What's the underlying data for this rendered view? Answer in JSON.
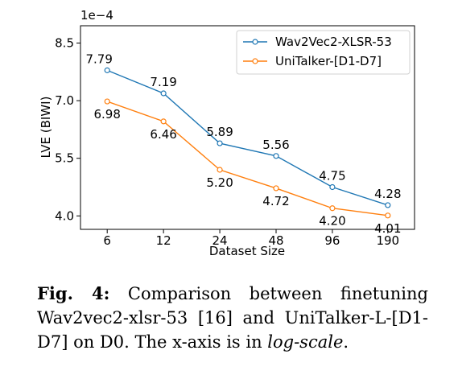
{
  "chart_data": {
    "type": "line",
    "title": "",
    "xlabel": "Dataset Size",
    "ylabel": "LVE (BIWI)",
    "y_multiplier": "1e−4",
    "x": [
      6,
      12,
      24,
      48,
      96,
      190
    ],
    "x_tick_labels": [
      "6",
      "12",
      "24",
      "48",
      "96",
      "190"
    ],
    "x_scale": "log",
    "y_ticks": [
      4.0,
      5.5,
      7.0,
      8.5
    ],
    "y_tick_labels": [
      "4.0",
      "5.5",
      "7.0",
      "8.5"
    ],
    "ylim": [
      3.65,
      8.95
    ],
    "grid": false,
    "legend_position": "top-right",
    "series": [
      {
        "name": "Wav2Vec2-XLSR-53",
        "color": "#1f77b4",
        "values": [
          7.79,
          7.19,
          5.89,
          5.56,
          4.75,
          4.28
        ],
        "labels": [
          "7.79",
          "7.19",
          "5.89",
          "5.56",
          "4.75",
          "4.28"
        ]
      },
      {
        "name": "UniTalker-[D1-D7]",
        "color": "#ff7f0e",
        "values": [
          6.98,
          6.46,
          5.2,
          4.72,
          4.2,
          4.01
        ],
        "labels": [
          "6.98",
          "6.46",
          "5.20",
          "4.72",
          "4.20",
          "4.01"
        ]
      }
    ]
  },
  "caption": {
    "label": "Fig. 4:",
    "text": " Comparison between finetuning Wav2vec2-xlsr-53 [16] and UniTalker-L-[D1-D7] on D0. The x-axis is in ",
    "emphasis": "log-scale",
    "end": "."
  }
}
